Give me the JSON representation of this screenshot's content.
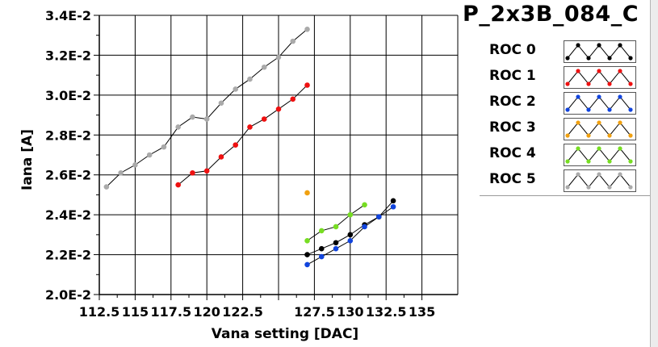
{
  "chart_data": {
    "type": "line",
    "title": "P_2x3B_084_C",
    "xlabel": "Vana setting [DAC]",
    "ylabel": "Iana [A]",
    "xlim": [
      112.5,
      137.5
    ],
    "ylim": [
      0.02,
      0.034
    ],
    "x_ticks": [
      112.5,
      115,
      117.5,
      120,
      122.5,
      125,
      127.5,
      130,
      132.5,
      135
    ],
    "x_tick_labels": [
      "112.5",
      "115",
      "117.5",
      "120",
      "122.5",
      "",
      "127.5",
      "130",
      "132.5",
      "135"
    ],
    "y_ticks": [
      0.02,
      0.022,
      0.024,
      0.026,
      0.028,
      0.03,
      0.032,
      0.034
    ],
    "y_tick_labels": [
      "2.0E-2",
      "2.2E-2",
      "2.4E-2",
      "2.6E-2",
      "2.8E-2",
      "3.0E-2",
      "3.2E-2",
      "3.4E-2"
    ],
    "grid": true,
    "legend_position": "right",
    "series": [
      {
        "name": "ROC 0",
        "color": "#000000",
        "x": [
          127,
          128,
          129,
          130,
          131,
          132,
          133
        ],
        "y": [
          0.022,
          0.0223,
          0.0226,
          0.023,
          0.0235,
          0.0239,
          0.0247
        ]
      },
      {
        "name": "ROC 1",
        "color": "#ee1111",
        "x": [
          118,
          119,
          120,
          121,
          122,
          123,
          124,
          125,
          126,
          127
        ],
        "y": [
          0.0255,
          0.0261,
          0.0262,
          0.0269,
          0.0275,
          0.0284,
          0.0288,
          0.0293,
          0.0298,
          0.0305
        ]
      },
      {
        "name": "ROC 2",
        "color": "#1144dd",
        "x": [
          127,
          128,
          129,
          130,
          131,
          132,
          133
        ],
        "y": [
          0.0215,
          0.0219,
          0.0223,
          0.0227,
          0.0234,
          0.0239,
          0.0244
        ]
      },
      {
        "name": "ROC 3",
        "color": "#f0a010",
        "x": [
          127
        ],
        "y": [
          0.0251
        ]
      },
      {
        "name": "ROC 4",
        "color": "#77dd22",
        "x": [
          127,
          128,
          129,
          130,
          131
        ],
        "y": [
          0.0227,
          0.0232,
          0.0234,
          0.024,
          0.0245
        ]
      },
      {
        "name": "ROC 5",
        "color": "#aaaaaa",
        "x": [
          113,
          114,
          115,
          116,
          117,
          118,
          119,
          120,
          121,
          122,
          123,
          124,
          125,
          126,
          127
        ],
        "y": [
          0.0254,
          0.0261,
          0.0265,
          0.027,
          0.0274,
          0.0284,
          0.0289,
          0.0288,
          0.0296,
          0.0303,
          0.0308,
          0.0314,
          0.0319,
          0.0327,
          0.0333
        ]
      }
    ]
  },
  "legend": {
    "items": [
      {
        "label": "ROC 0",
        "color": "#000000"
      },
      {
        "label": "ROC 1",
        "color": "#ee1111"
      },
      {
        "label": "ROC 2",
        "color": "#1144dd"
      },
      {
        "label": "ROC 3",
        "color": "#f0a010"
      },
      {
        "label": "ROC 4",
        "color": "#77dd22"
      },
      {
        "label": "ROC 5",
        "color": "#aaaaaa"
      }
    ]
  }
}
